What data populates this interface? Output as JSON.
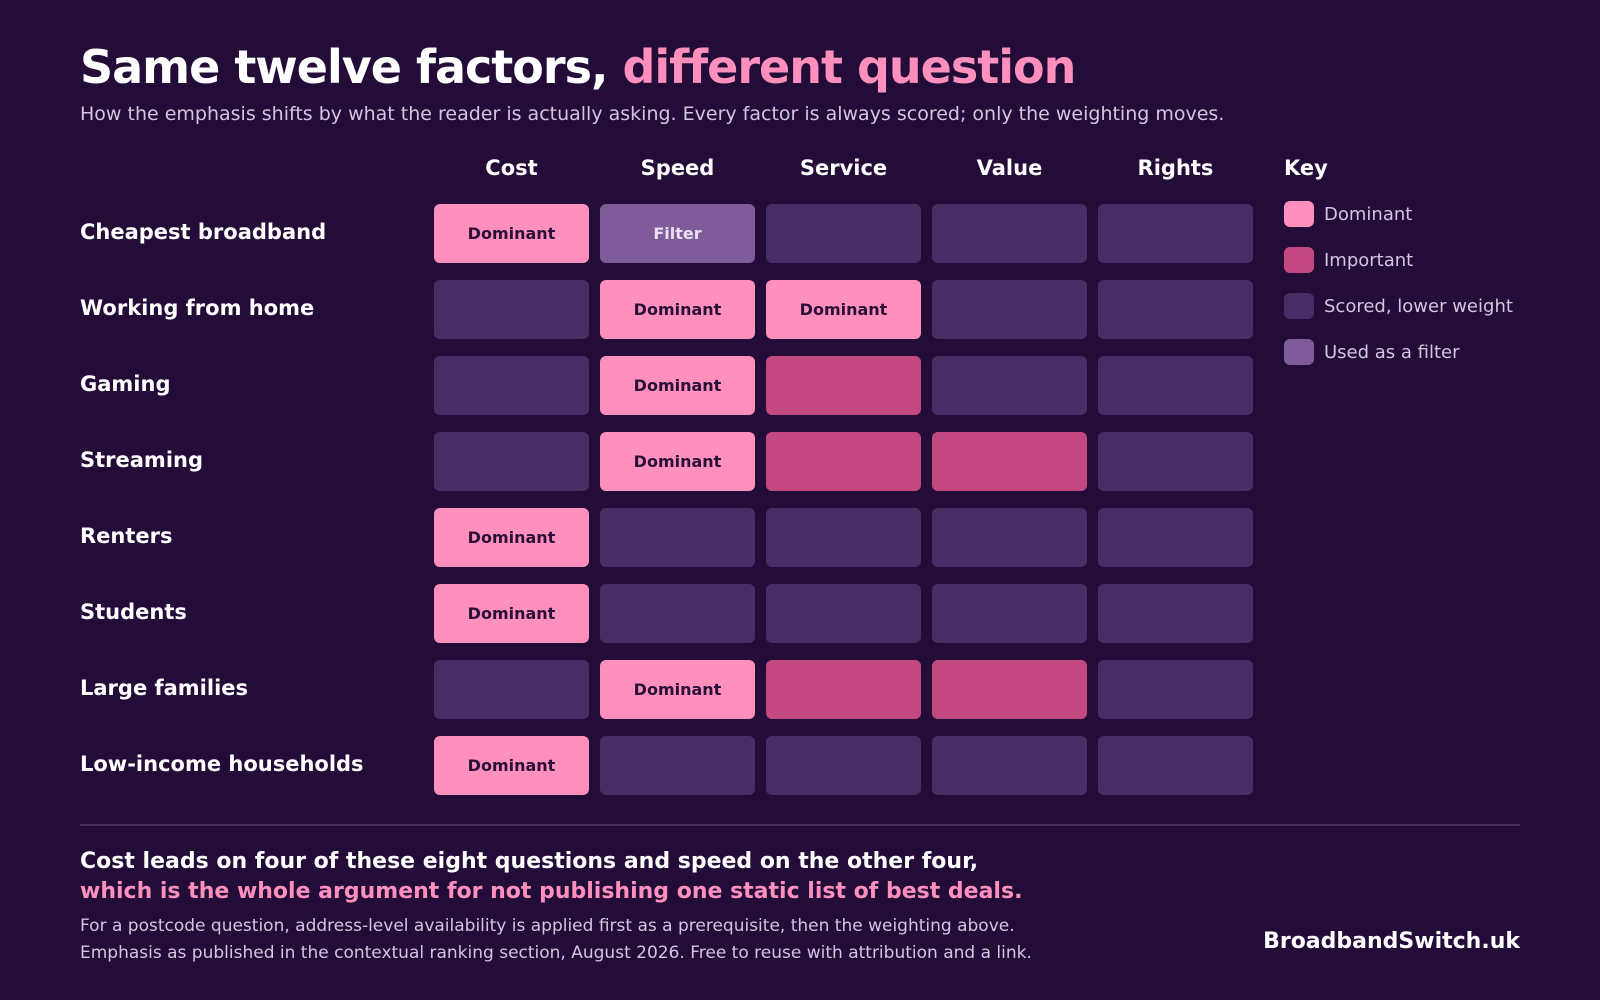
{
  "header": {
    "title_main": "Same twelve factors, ",
    "title_accent": "different question",
    "subtitle": "How the emphasis shifts by what the reader is actually asking.  Every factor is always scored; only the weighting moves."
  },
  "colors": {
    "background": "#230d38",
    "dominant": "#ff8fbd",
    "important": "#c44880",
    "low": "#482c66",
    "filter": "#7f5b99"
  },
  "chart_data": {
    "type": "heatmap",
    "columns": [
      "Cost",
      "Speed",
      "Service",
      "Value",
      "Rights"
    ],
    "rows": [
      {
        "label": "Cheapest broadband",
        "cells": [
          "dominant",
          "filter",
          "low",
          "low",
          "low"
        ]
      },
      {
        "label": "Working from home",
        "cells": [
          "low",
          "dominant",
          "dominant",
          "low",
          "low"
        ]
      },
      {
        "label": "Gaming",
        "cells": [
          "low",
          "dominant",
          "important",
          "low",
          "low"
        ]
      },
      {
        "label": "Streaming",
        "cells": [
          "low",
          "dominant",
          "important",
          "important",
          "low"
        ]
      },
      {
        "label": "Renters",
        "cells": [
          "dominant",
          "low",
          "low",
          "low",
          "low"
        ]
      },
      {
        "label": "Students",
        "cells": [
          "dominant",
          "low",
          "low",
          "low",
          "low"
        ]
      },
      {
        "label": "Large families",
        "cells": [
          "low",
          "dominant",
          "important",
          "important",
          "low"
        ]
      },
      {
        "label": "Low-income households",
        "cells": [
          "dominant",
          "low",
          "low",
          "low",
          "low"
        ]
      }
    ],
    "cell_text": {
      "dominant": "Dominant",
      "filter": "Filter",
      "important": "",
      "low": ""
    },
    "legend_placement": "right"
  },
  "key": {
    "title": "Key",
    "items": [
      {
        "level": "dominant",
        "label": "Dominant"
      },
      {
        "level": "important",
        "label": "Important"
      },
      {
        "level": "low",
        "label": "Scored, lower weight"
      },
      {
        "level": "filter",
        "label": "Used as a filter"
      }
    ]
  },
  "footer": {
    "headline": "Cost leads on four of these eight questions and speed on the other four,",
    "headline_accent": "which is the whole argument for not publishing one static list of best deals.",
    "note1": "For a postcode question, address-level availability is applied first as a prerequisite, then the weighting above.",
    "note2": "Emphasis as published in the contextual ranking section, August 2026.  Free to reuse with attribution and a link.",
    "brand": "BroadbandSwitch.uk"
  }
}
